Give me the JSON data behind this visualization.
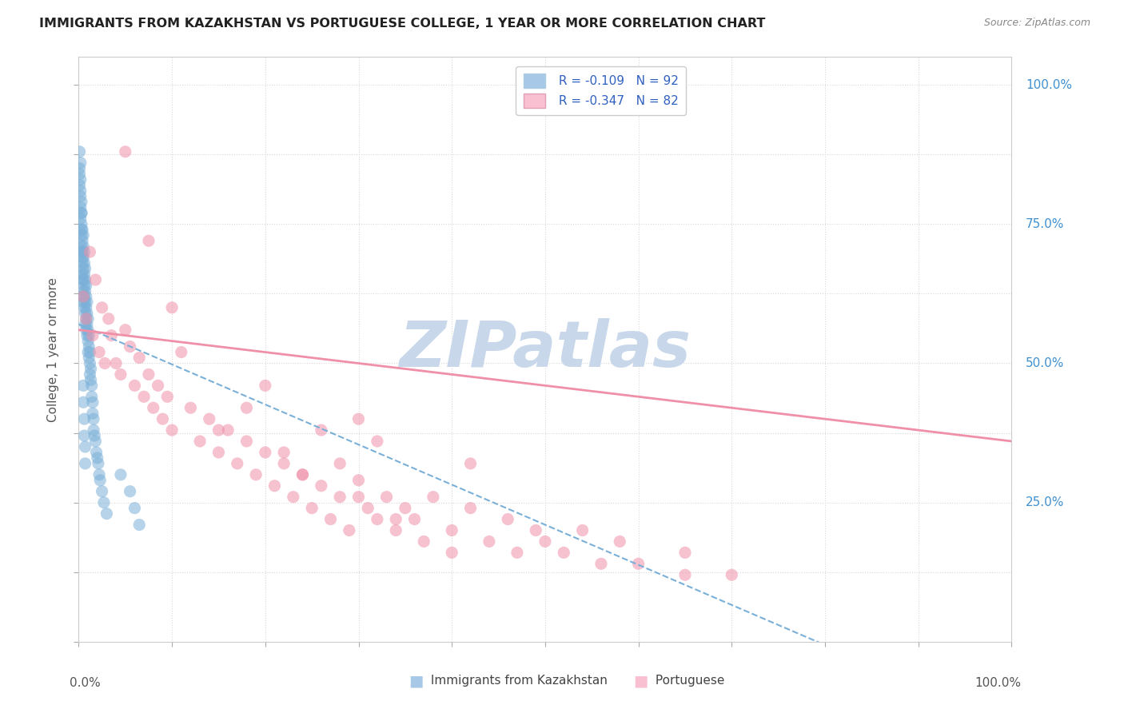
{
  "title": "IMMIGRANTS FROM KAZAKHSTAN VS PORTUGUESE COLLEGE, 1 YEAR OR MORE CORRELATION CHART",
  "source_text": "Source: ZipAtlas.com",
  "ylabel": "College, 1 year or more",
  "right_yticks": [
    "100.0%",
    "75.0%",
    "50.0%",
    "25.0%"
  ],
  "right_ytick_vals": [
    1.0,
    0.75,
    0.5,
    0.25
  ],
  "series1_label": "Immigrants from Kazakhstan",
  "series1_R": -0.109,
  "series1_N": 92,
  "series1_color": "#a8c8e8",
  "series1_marker_color": "#7ab0d8",
  "series1_line_color": "#7ab0d8",
  "series1_line_style": "--",
  "series2_label": "Portuguese",
  "series2_R": -0.347,
  "series2_N": 82,
  "series2_color": "#f8c0d0",
  "series2_marker_color": "#f090a8",
  "series2_line_color": "#f090a8",
  "series2_line_style": "-",
  "legend_R_color": "#3060c0",
  "xlim": [
    0.0,
    1.0
  ],
  "ylim": [
    0.0,
    1.05
  ],
  "background_color": "#ffffff",
  "watermark_text": "ZIPatlas",
  "watermark_color": "#c8d8ea",
  "series1_x": [
    0.001,
    0.001,
    0.002,
    0.002,
    0.002,
    0.002,
    0.003,
    0.003,
    0.003,
    0.003,
    0.003,
    0.004,
    0.004,
    0.004,
    0.004,
    0.004,
    0.005,
    0.005,
    0.005,
    0.005,
    0.005,
    0.005,
    0.005,
    0.006,
    0.006,
    0.006,
    0.006,
    0.006,
    0.006,
    0.007,
    0.007,
    0.007,
    0.007,
    0.007,
    0.007,
    0.008,
    0.008,
    0.008,
    0.008,
    0.008,
    0.009,
    0.009,
    0.009,
    0.009,
    0.01,
    0.01,
    0.01,
    0.01,
    0.011,
    0.011,
    0.011,
    0.012,
    0.012,
    0.012,
    0.013,
    0.013,
    0.014,
    0.014,
    0.015,
    0.015,
    0.016,
    0.016,
    0.017,
    0.018,
    0.019,
    0.02,
    0.021,
    0.022,
    0.023,
    0.025,
    0.027,
    0.03,
    0.001,
    0.001,
    0.002,
    0.002,
    0.003,
    0.003,
    0.003,
    0.004,
    0.004,
    0.004,
    0.005,
    0.005,
    0.006,
    0.006,
    0.007,
    0.007,
    0.045,
    0.055,
    0.06,
    0.065
  ],
  "series1_y": [
    0.85,
    0.82,
    0.83,
    0.8,
    0.78,
    0.76,
    0.79,
    0.77,
    0.75,
    0.73,
    0.71,
    0.74,
    0.72,
    0.7,
    0.68,
    0.66,
    0.73,
    0.71,
    0.69,
    0.67,
    0.65,
    0.63,
    0.61,
    0.7,
    0.68,
    0.66,
    0.64,
    0.62,
    0.6,
    0.67,
    0.65,
    0.63,
    0.61,
    0.59,
    0.57,
    0.64,
    0.62,
    0.6,
    0.58,
    0.56,
    0.61,
    0.59,
    0.57,
    0.55,
    0.58,
    0.56,
    0.54,
    0.52,
    0.55,
    0.53,
    0.51,
    0.52,
    0.5,
    0.48,
    0.49,
    0.47,
    0.46,
    0.44,
    0.43,
    0.41,
    0.4,
    0.38,
    0.37,
    0.36,
    0.34,
    0.33,
    0.32,
    0.3,
    0.29,
    0.27,
    0.25,
    0.23,
    0.88,
    0.84,
    0.86,
    0.81,
    0.77,
    0.74,
    0.7,
    0.69,
    0.65,
    0.62,
    0.46,
    0.43,
    0.4,
    0.37,
    0.35,
    0.32,
    0.3,
    0.27,
    0.24,
    0.21
  ],
  "series2_x": [
    0.005,
    0.008,
    0.012,
    0.015,
    0.018,
    0.022,
    0.025,
    0.028,
    0.032,
    0.035,
    0.04,
    0.045,
    0.05,
    0.055,
    0.06,
    0.065,
    0.07,
    0.075,
    0.08,
    0.085,
    0.09,
    0.095,
    0.1,
    0.11,
    0.12,
    0.13,
    0.14,
    0.15,
    0.16,
    0.17,
    0.18,
    0.19,
    0.2,
    0.21,
    0.22,
    0.23,
    0.24,
    0.25,
    0.26,
    0.27,
    0.28,
    0.29,
    0.3,
    0.31,
    0.32,
    0.33,
    0.34,
    0.35,
    0.36,
    0.37,
    0.38,
    0.4,
    0.42,
    0.44,
    0.46,
    0.47,
    0.49,
    0.5,
    0.52,
    0.54,
    0.56,
    0.58,
    0.6,
    0.65,
    0.7,
    0.22,
    0.24,
    0.26,
    0.28,
    0.3,
    0.32,
    0.34,
    0.2,
    0.4,
    0.1,
    0.15,
    0.05,
    0.075,
    0.18,
    0.3,
    0.42,
    0.65
  ],
  "series2_y": [
    0.62,
    0.58,
    0.7,
    0.55,
    0.65,
    0.52,
    0.6,
    0.5,
    0.58,
    0.55,
    0.5,
    0.48,
    0.56,
    0.53,
    0.46,
    0.51,
    0.44,
    0.48,
    0.42,
    0.46,
    0.4,
    0.44,
    0.38,
    0.52,
    0.42,
    0.36,
    0.4,
    0.34,
    0.38,
    0.32,
    0.36,
    0.3,
    0.34,
    0.28,
    0.32,
    0.26,
    0.3,
    0.24,
    0.28,
    0.22,
    0.26,
    0.2,
    0.29,
    0.24,
    0.22,
    0.26,
    0.2,
    0.24,
    0.22,
    0.18,
    0.26,
    0.2,
    0.24,
    0.18,
    0.22,
    0.16,
    0.2,
    0.18,
    0.16,
    0.2,
    0.14,
    0.18,
    0.14,
    0.16,
    0.12,
    0.34,
    0.3,
    0.38,
    0.32,
    0.26,
    0.36,
    0.22,
    0.46,
    0.16,
    0.6,
    0.38,
    0.88,
    0.72,
    0.42,
    0.4,
    0.32,
    0.12
  ],
  "grid_color": "#d8d8d8",
  "grid_linestyle": ":",
  "title_fontsize": 11.5,
  "axis_label_color": "#555555",
  "right_label_color": "#4090d0"
}
